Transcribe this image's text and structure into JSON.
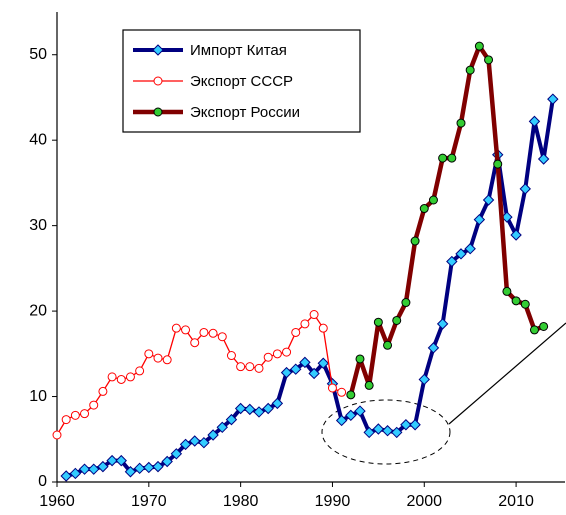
{
  "chart_data": {
    "type": "line",
    "xlim": [
      1960,
      2015
    ],
    "xticks": [
      1960,
      1970,
      1980,
      1990,
      2000,
      2010
    ],
    "ylim": [
      0,
      55
    ],
    "yticks": [
      0,
      10,
      20,
      30,
      40,
      50
    ],
    "grid": false,
    "series": [
      {
        "name": "Импорт Китая",
        "color": "#000080",
        "marker_color": "#33ccff",
        "marker": "diamond",
        "x": [
          1961,
          1962,
          1963,
          1964,
          1965,
          1966,
          1967,
          1968,
          1969,
          1970,
          1971,
          1972,
          1973,
          1974,
          1975,
          1976,
          1977,
          1978,
          1979,
          1980,
          1981,
          1982,
          1983,
          1984,
          1985,
          1986,
          1987,
          1988,
          1989,
          1990,
          1991,
          1992,
          1993,
          1994,
          1995,
          1996,
          1997,
          1998,
          1999,
          2000,
          2001,
          2002,
          2003,
          2004,
          2005,
          2006,
          2007,
          2008,
          2009,
          2010,
          2011,
          2012,
          2013,
          2014
        ],
        "values": [
          0.7,
          1.0,
          1.5,
          1.5,
          1.8,
          2.5,
          2.5,
          1.2,
          1.6,
          1.7,
          1.8,
          2.4,
          3.3,
          4.4,
          4.8,
          4.6,
          5.5,
          6.4,
          7.3,
          8.6,
          8.5,
          8.2,
          8.6,
          9.2,
          12.8,
          13.2,
          14.0,
          12.7,
          13.9,
          11.5,
          7.2,
          7.8,
          8.3,
          5.8,
          6.2,
          6.0,
          5.8,
          6.7,
          6.7,
          12.0,
          15.7,
          18.5,
          25.8,
          26.7,
          27.3,
          30.7,
          33.0,
          38.3,
          31.0,
          28.9,
          34.3,
          42.2,
          37.8,
          44.8
        ]
      },
      {
        "name": "Экспорт СССР",
        "color": "#ff0000",
        "marker_color": "#ffffff",
        "marker": "circle",
        "x": [
          1960,
          1961,
          1962,
          1963,
          1964,
          1965,
          1966,
          1967,
          1968,
          1969,
          1970,
          1971,
          1972,
          1973,
          1974,
          1975,
          1976,
          1977,
          1978,
          1979,
          1980,
          1981,
          1982,
          1983,
          1984,
          1985,
          1986,
          1987,
          1988,
          1989,
          1990,
          1991
        ],
        "values": [
          5.5,
          7.3,
          7.8,
          8.0,
          9.0,
          10.6,
          12.3,
          12.0,
          12.3,
          13.0,
          15.0,
          14.5,
          14.3,
          18.0,
          17.8,
          16.3,
          17.5,
          17.4,
          17.0,
          14.8,
          13.5,
          13.5,
          13.3,
          14.6,
          15.0,
          15.2,
          17.5,
          18.5,
          19.6,
          18.0,
          11.0,
          10.5
        ]
      },
      {
        "name": "Экспорт России",
        "color": "#800000",
        "marker_color": "#33cc33",
        "marker": "circle",
        "x": [
          1992,
          1993,
          1994,
          1995,
          1996,
          1997,
          1998,
          1999,
          2000,
          2001,
          2002,
          2003,
          2004,
          2005,
          2006,
          2007,
          2008,
          2009,
          2010,
          2011,
          2012,
          2013
        ],
        "values": [
          10.2,
          14.4,
          11.3,
          18.7,
          16.0,
          18.9,
          21.0,
          28.2,
          32.0,
          33.0,
          37.9,
          37.9,
          42.0,
          48.2,
          51.0,
          49.4,
          37.2,
          22.3,
          21.2,
          20.8,
          17.8,
          18.2
        ]
      }
    ]
  }
}
